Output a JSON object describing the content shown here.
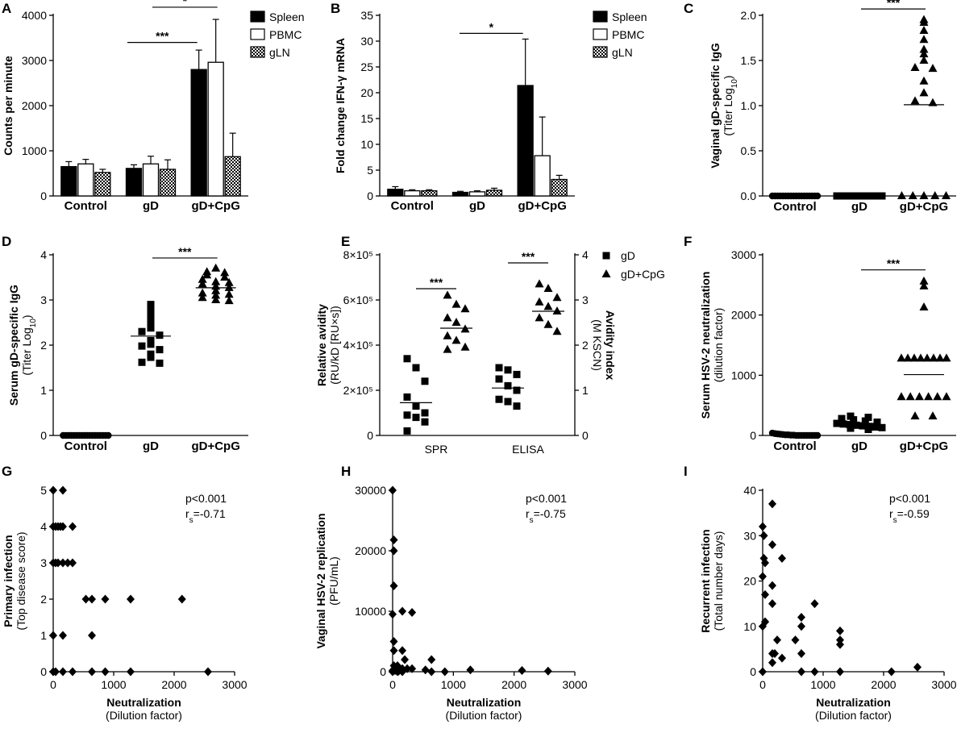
{
  "chart_data": [
    {
      "panel": "A",
      "type": "bar",
      "ylabel": "Counts per minute",
      "categories": [
        "Control",
        "gD",
        "gD+CpG"
      ],
      "ylim": [
        0,
        4000
      ],
      "yticks": [
        0,
        1000,
        2000,
        3000,
        4000
      ],
      "legend": [
        "Spleen",
        "PBMC",
        "gLN"
      ],
      "series": [
        {
          "name": "Spleen",
          "values": [
            650,
            610,
            2800
          ],
          "errors": [
            110,
            80,
            430
          ]
        },
        {
          "name": "PBMC",
          "values": [
            710,
            710,
            2960
          ],
          "errors": [
            100,
            170,
            950
          ]
        },
        {
          "name": "gLN",
          "values": [
            520,
            590,
            870
          ],
          "errors": [
            70,
            210,
            520
          ]
        }
      ],
      "significance": [
        {
          "label": "***",
          "from": "gD",
          "to": "gD+CpG"
        },
        {
          "label": "*",
          "from": "gD",
          "to": "gD+CpG"
        }
      ]
    },
    {
      "panel": "B",
      "type": "bar",
      "ylabel": "Fold change IFN-γ mRNA",
      "categories": [
        "Control",
        "gD",
        "gD+CpG"
      ],
      "ylim": [
        0,
        35
      ],
      "yticks": [
        0,
        5,
        10,
        15,
        20,
        25,
        30,
        35
      ],
      "legend": [
        "Spleen",
        "PBMC",
        "gLN"
      ],
      "series": [
        {
          "name": "Spleen",
          "values": [
            1.3,
            0.7,
            21.4
          ],
          "errors": [
            0.5,
            0.2,
            9.0
          ]
        },
        {
          "name": "PBMC",
          "values": [
            1.0,
            0.8,
            7.8
          ],
          "errors": [
            0.2,
            0.2,
            7.5
          ]
        },
        {
          "name": "gLN",
          "values": [
            1.0,
            1.1,
            3.2
          ],
          "errors": [
            0.2,
            0.4,
            0.8
          ]
        }
      ],
      "significance": [
        {
          "label": "*",
          "from": "gD",
          "to": "gD+CpG"
        }
      ]
    },
    {
      "panel": "C",
      "type": "scatter",
      "ylabel": "Vaginal gD-specific IgG",
      "ylabel2": "(Titer Log10)",
      "categories": [
        "Control",
        "gD",
        "gD+CpG"
      ],
      "ylim": [
        0,
        2.0
      ],
      "yticks": [
        "0.0",
        "0.5",
        "1.0",
        "1.5",
        "2.0"
      ],
      "marker": [
        "circle",
        "square",
        "triangle"
      ],
      "groups": [
        {
          "name": "Control",
          "values": [
            0,
            0,
            0,
            0,
            0,
            0,
            0,
            0,
            0,
            0,
            0,
            0,
            0,
            0,
            0,
            0,
            0,
            0
          ],
          "mean": 0
        },
        {
          "name": "gD",
          "values": [
            0,
            0,
            0,
            0,
            0,
            0,
            0,
            0,
            0,
            0,
            0,
            0,
            0,
            0,
            0,
            0,
            0,
            0
          ],
          "mean": 0
        },
        {
          "name": "gD+CpG",
          "values": [
            1.95,
            1.92,
            1.83,
            1.73,
            1.62,
            1.57,
            1.5,
            1.42,
            1.41,
            1.27,
            1.14,
            1.05,
            1.03,
            0,
            0,
            0,
            0,
            0
          ],
          "mean": 1.01
        }
      ],
      "significance": [
        {
          "label": "***",
          "from": "gD",
          "to": "gD+CpG"
        }
      ]
    },
    {
      "panel": "D",
      "type": "scatter",
      "ylabel": "Serum gD-specific IgG",
      "ylabel2": "(Titer Log10)",
      "categories": [
        "Control",
        "gD",
        "gD+CpG"
      ],
      "ylim": [
        0,
        4
      ],
      "yticks": [
        0,
        1,
        2,
        3,
        4
      ],
      "marker": [
        "circle",
        "square",
        "triangle"
      ],
      "groups": [
        {
          "name": "Control",
          "values": [
            0,
            0,
            0,
            0,
            0,
            0,
            0,
            0,
            0,
            0,
            0,
            0,
            0,
            0,
            0,
            0,
            0,
            0
          ],
          "mean": 0
        },
        {
          "name": "gD",
          "values": [
            2.9,
            2.8,
            2.72,
            2.62,
            2.5,
            2.38,
            2.3,
            2.22,
            2.1,
            2.02,
            1.98,
            1.9,
            1.8,
            1.73,
            1.62,
            1.6
          ],
          "mean": 2.2
        },
        {
          "name": "gD+CpG",
          "values": [
            3.7,
            3.62,
            3.6,
            3.55,
            3.5,
            3.45,
            3.4,
            3.35,
            3.3,
            3.27,
            3.2,
            3.15,
            3.1,
            3.05,
            3.0,
            2.98,
            3.12,
            3.38
          ],
          "mean": 3.27
        }
      ],
      "significance": [
        {
          "label": "***",
          "from": "gD",
          "to": "gD+CpG"
        }
      ]
    },
    {
      "panel": "E",
      "type": "scatter",
      "ylabel": "Relative avidity",
      "ylabel2": "(RU/kD [RU×s])",
      "ylabel_right": "Avidity index",
      "ylabel_right2": "(M KSCN)",
      "categories": [
        "SPR",
        "ELISA"
      ],
      "ylim": [
        0,
        800000
      ],
      "yticks": [
        "0",
        "2×10⁵",
        "4×10⁵",
        "6×10⁵",
        "8×10⁵"
      ],
      "ylim_right": [
        0,
        4
      ],
      "yticks_right": [
        0,
        1,
        2,
        3,
        4
      ],
      "legend": [
        "gD",
        "gD+CpG"
      ],
      "groups": [
        {
          "name": "gD",
          "x": "SPR",
          "values": [
            340000,
            300000,
            240000,
            170000,
            130000,
            100000,
            90000,
            80000,
            60000,
            20000
          ],
          "mean": 145000
        },
        {
          "name": "gD+CpG",
          "x": "SPR",
          "values": [
            620000,
            580000,
            560000,
            520000,
            500000,
            470000,
            440000,
            420000,
            390000,
            380000
          ],
          "mean": 475000
        },
        {
          "name": "gD",
          "x": "ELISA",
          "values": [
            1.5,
            1.45,
            1.35,
            1.25,
            1.1,
            1.0,
            0.8,
            0.75,
            0.65
          ],
          "mean": 1.05,
          "axis": "right"
        },
        {
          "name": "gD+CpG",
          "x": "ELISA",
          "values": [
            3.35,
            3.25,
            3.05,
            2.95,
            2.85,
            2.75,
            2.6,
            2.45,
            2.3
          ],
          "mean": 2.75,
          "axis": "right"
        }
      ],
      "significance": [
        {
          "label": "***",
          "at": "SPR"
        },
        {
          "label": "***",
          "at": "ELISA"
        }
      ]
    },
    {
      "panel": "F",
      "type": "scatter",
      "ylabel": "Serum HSV-2 neutralization",
      "ylabel2": "(dilution factor)",
      "categories": [
        "Control",
        "gD",
        "gD+CpG"
      ],
      "ylim": [
        0,
        3000
      ],
      "yticks": [
        0,
        1000,
        2000,
        3000
      ],
      "marker": [
        "circle",
        "square",
        "triangle"
      ],
      "groups": [
        {
          "name": "Control",
          "values": [
            40,
            30,
            25,
            20,
            15,
            10,
            10,
            5,
            5,
            0,
            0,
            0,
            0,
            0,
            0,
            0,
            0,
            0
          ],
          "mean": 10
        },
        {
          "name": "gD",
          "values": [
            320,
            300,
            280,
            260,
            240,
            220,
            200,
            190,
            180,
            170,
            160,
            150,
            140,
            130,
            120,
            100
          ],
          "mean": 200
        },
        {
          "name": "gD+CpG",
          "values": [
            2560,
            2480,
            2130,
            1280,
            1280,
            1280,
            1280,
            1280,
            1280,
            1280,
            1280,
            640,
            640,
            640,
            640,
            640,
            640,
            320,
            320
          ],
          "mean": 1010
        }
      ],
      "significance": [
        {
          "label": "***",
          "from": "gD",
          "to": "gD+CpG"
        }
      ]
    },
    {
      "panel": "G",
      "type": "scatter",
      "ylabel": "Primary infection",
      "ylabel2": "(Top disease score)",
      "xlabel": "Neutralization",
      "xlabel2": "(Dilution factor)",
      "xlim": [
        0,
        3000
      ],
      "xticks": [
        0,
        1000,
        2000,
        3000
      ],
      "ylim": [
        0,
        5
      ],
      "yticks": [
        0,
        1,
        2,
        3,
        4,
        5
      ],
      "stat_p": "p<0.001",
      "stat_r": "r",
      "stat_rsub": "s",
      "stat_rval": "=-0.71",
      "points": [
        [
          0,
          5
        ],
        [
          160,
          5
        ],
        [
          0,
          4
        ],
        [
          40,
          4
        ],
        [
          80,
          4
        ],
        [
          120,
          4
        ],
        [
          160,
          4
        ],
        [
          320,
          4
        ],
        [
          0,
          3
        ],
        [
          40,
          3
        ],
        [
          80,
          3
        ],
        [
          160,
          3
        ],
        [
          240,
          3
        ],
        [
          320,
          3
        ],
        [
          0,
          1
        ],
        [
          160,
          1
        ],
        [
          640,
          1
        ],
        [
          540,
          2
        ],
        [
          640,
          2
        ],
        [
          860,
          2
        ],
        [
          1280,
          2
        ],
        [
          2130,
          2
        ],
        [
          0,
          0
        ],
        [
          40,
          0
        ],
        [
          160,
          0
        ],
        [
          320,
          0
        ],
        [
          640,
          0
        ],
        [
          860,
          0
        ],
        [
          1280,
          0
        ],
        [
          2560,
          0
        ]
      ]
    },
    {
      "panel": "H",
      "type": "scatter",
      "ylabel": "Vaginal HSV-2 replication",
      "ylabel2": "(PFU/mL)",
      "xlabel": "Neutralization",
      "xlabel2": "(Dilution factor)",
      "xlim": [
        0,
        3000
      ],
      "xticks": [
        0,
        1000,
        2000,
        3000
      ],
      "ylim": [
        0,
        30000
      ],
      "yticks": [
        0,
        10000,
        20000,
        30000
      ],
      "stat_p": "p<0.001",
      "stat_r": "r",
      "stat_rsub": "s",
      "stat_rval": "=-0.75",
      "points": [
        [
          0,
          30000
        ],
        [
          20,
          21800
        ],
        [
          20,
          20000
        ],
        [
          20,
          14200
        ],
        [
          0,
          9500
        ],
        [
          160,
          10000
        ],
        [
          320,
          9800
        ],
        [
          20,
          5000
        ],
        [
          20,
          3500
        ],
        [
          160,
          3500
        ],
        [
          200,
          2000
        ],
        [
          640,
          2000
        ],
        [
          20,
          1000
        ],
        [
          80,
          1000
        ],
        [
          100,
          500
        ],
        [
          160,
          500
        ],
        [
          240,
          500
        ],
        [
          320,
          500
        ],
        [
          0,
          200
        ],
        [
          40,
          200
        ],
        [
          100,
          100
        ],
        [
          160,
          0
        ],
        [
          540,
          300
        ],
        [
          640,
          0
        ],
        [
          860,
          0
        ],
        [
          1280,
          300
        ],
        [
          2130,
          200
        ],
        [
          2560,
          100
        ],
        [
          0,
          0
        ],
        [
          80,
          0
        ]
      ]
    },
    {
      "panel": "I",
      "type": "scatter",
      "ylabel": "Recurrent infection",
      "ylabel2": "(Total number days)",
      "xlabel": "Neutralization",
      "xlabel2": "(Dilution factor)",
      "xlim": [
        0,
        3000
      ],
      "xticks": [
        0,
        1000,
        2000,
        3000
      ],
      "ylim": [
        0,
        40
      ],
      "yticks": [
        0,
        10,
        20,
        30,
        40
      ],
      "stat_p": "p<0.001",
      "stat_r": "r",
      "stat_rsub": "s",
      "stat_rval": "=-0.59",
      "points": [
        [
          0,
          32
        ],
        [
          20,
          30
        ],
        [
          160,
          37
        ],
        [
          20,
          25
        ],
        [
          40,
          24
        ],
        [
          160,
          28
        ],
        [
          320,
          25
        ],
        [
          0,
          21
        ],
        [
          40,
          17
        ],
        [
          160,
          19
        ],
        [
          40,
          11
        ],
        [
          160,
          15
        ],
        [
          860,
          15
        ],
        [
          0,
          10
        ],
        [
          40,
          11
        ],
        [
          240,
          7
        ],
        [
          540,
          7
        ],
        [
          640,
          12
        ],
        [
          640,
          10
        ],
        [
          1280,
          9
        ],
        [
          1280,
          7
        ],
        [
          1280,
          6
        ],
        [
          160,
          4
        ],
        [
          200,
          4
        ],
        [
          320,
          3
        ],
        [
          640,
          4
        ],
        [
          160,
          2
        ],
        [
          640,
          0
        ],
        [
          0,
          0
        ],
        [
          860,
          0
        ],
        [
          1280,
          0
        ],
        [
          2130,
          0
        ],
        [
          2560,
          1
        ]
      ]
    }
  ]
}
